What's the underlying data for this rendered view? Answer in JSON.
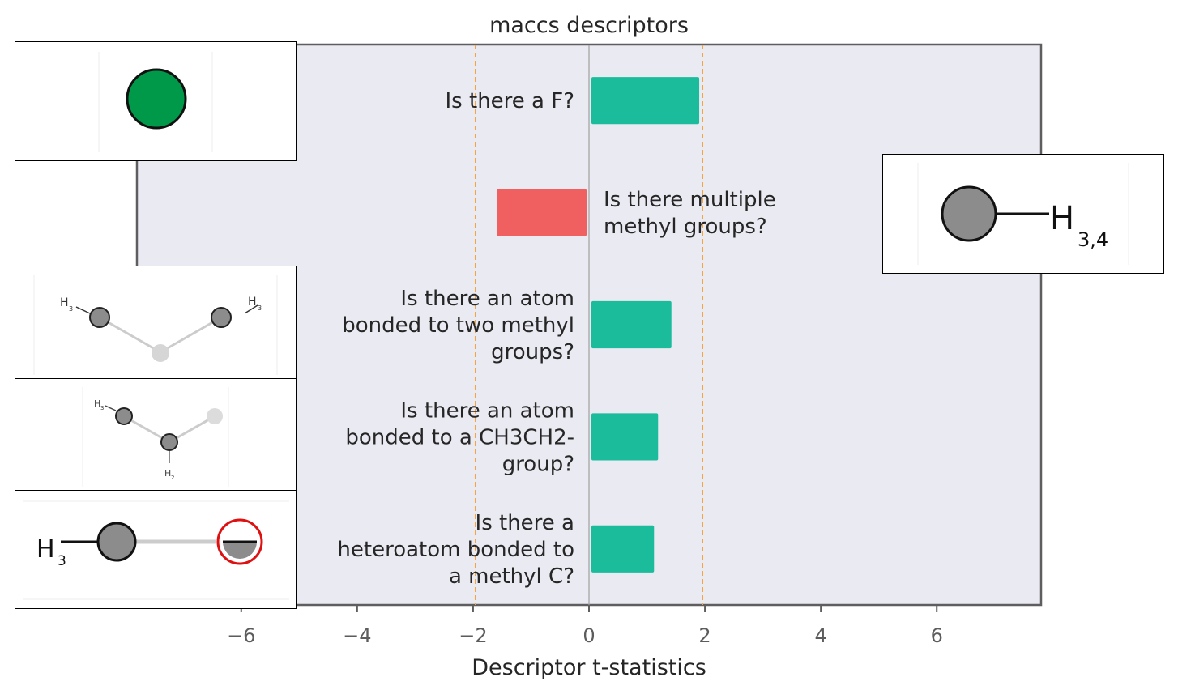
{
  "chart_data": {
    "type": "bar",
    "orientation": "horizontal",
    "title": "maccs descriptors",
    "xlabel": "Descriptor t-statistics",
    "ylabel": "",
    "xlim": [
      -7.8,
      7.8
    ],
    "xticks": [
      -6,
      -4,
      -2,
      0,
      2,
      4,
      6
    ],
    "xtick_labels": [
      "−6",
      "−4",
      "−2",
      "0",
      "2",
      "4",
      "6"
    ],
    "threshold_lines": [
      -1.96,
      1.96
    ],
    "grid": false,
    "categories": [
      "Is there a F?",
      "Is there multiple methyl groups?",
      "Is there an atom bonded to two methyl groups?",
      "Is there an atom bonded to a CH3CH2- group?",
      "Is there a heteroatom bonded to a methyl C?"
    ],
    "label_lines": [
      [
        "Is there a F?"
      ],
      [
        "Is there multiple",
        "methyl groups?"
      ],
      [
        "Is there an atom",
        "bonded to two methyl",
        "groups?"
      ],
      [
        "Is there an atom",
        "bonded to a CH3CH2-",
        "group?"
      ],
      [
        "Is there a",
        "heteroatom bonded to",
        "a methyl C?"
      ]
    ],
    "values": [
      1.86,
      -1.55,
      1.38,
      1.15,
      1.08
    ],
    "colors": {
      "positive": "#1abc9c",
      "negative": "#f06060",
      "threshold": "#f5a540",
      "zero_line": "#a0a0a0",
      "plot_background": "#eaeaf2"
    }
  },
  "thumbnails": {
    "fluorine": {
      "atom_color": "#00994a"
    },
    "methyl": {
      "atom_color": "#8c8c8c",
      "label": "H",
      "subscript": "3,4"
    },
    "two_methyl": {
      "atom_color": "#8c8c8c",
      "label_left": "H",
      "sub_left": "3",
      "label_right": "H",
      "sub_right": "3"
    },
    "ethyl": {
      "atom_color": "#8c8c8c",
      "label_top": "H",
      "sub_top": "3",
      "label_bottom": "H",
      "sub_bottom": "2"
    },
    "heteroatom_methyl": {
      "atom_color": "#8c8c8c",
      "highlight_color": "#dd1111",
      "label": "H",
      "subscript": "3"
    }
  }
}
